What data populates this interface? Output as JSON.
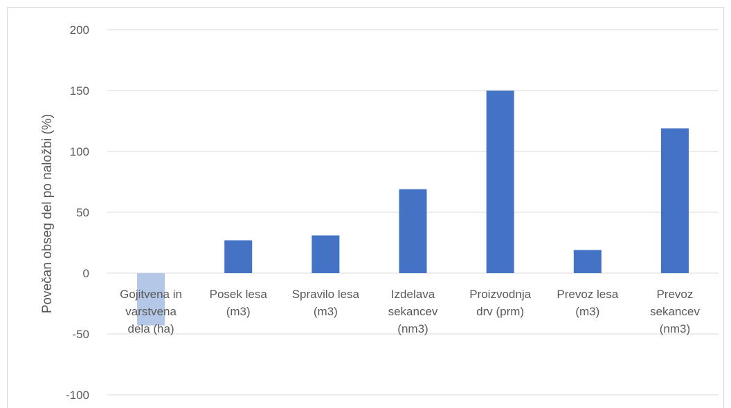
{
  "chart_data": {
    "type": "bar",
    "categories": [
      [
        "Gojitvena in",
        "varstvena",
        "dela (ha)"
      ],
      [
        "Posek lesa",
        "(m3)"
      ],
      [
        "Spravilo lesa",
        "(m3)"
      ],
      [
        "Izdelava",
        "sekancev",
        "(nm3)"
      ],
      [
        "Proizvodnja",
        "drv (prm)"
      ],
      [
        "Prevoz lesa",
        "(m3)"
      ],
      [
        "Prevoz",
        "sekancev",
        "(nm3)"
      ]
    ],
    "values": [
      -43,
      27,
      31,
      69,
      150,
      19,
      119
    ],
    "ylabel": "Povečan obseg del po naložbi (%)",
    "ylim": [
      -100,
      200
    ],
    "yticks": [
      200,
      150,
      100,
      50,
      0,
      -50,
      -100
    ],
    "grid": true,
    "colors": {
      "bar": "#4472c4",
      "bar_negative": "#b4c7e7",
      "grid": "#d9d9d9",
      "text": "#595959"
    }
  }
}
